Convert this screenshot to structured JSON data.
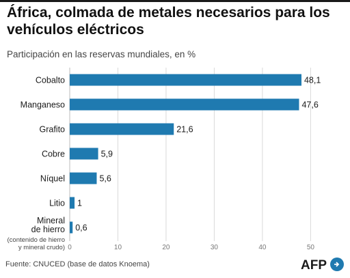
{
  "title": "África, colmada de metales necesarios para los vehículos eléctricos",
  "subtitle": "Participación en las reservas mundiales, en %",
  "source": "Fuente: CNUCED (base de datos Knoema)",
  "logo_text": "AFP",
  "colors": {
    "bar": "#1f7ab0",
    "grid": "#d9d9d9",
    "logo": "#1f7ab0"
  },
  "chart_data": {
    "type": "bar",
    "orientation": "horizontal",
    "categories": [
      {
        "label": "Cobalto",
        "value": 48.1,
        "value_label": "48,1"
      },
      {
        "label": "Manganeso",
        "value": 47.6,
        "value_label": "47,6"
      },
      {
        "label": "Grafito",
        "value": 21.6,
        "value_label": "21,6"
      },
      {
        "label": "Cobre",
        "value": 5.9,
        "value_label": "5,9"
      },
      {
        "label": "Níquel",
        "value": 5.6,
        "value_label": "5,6"
      },
      {
        "label": "Litio",
        "value": 1,
        "value_label": "1"
      },
      {
        "label": "Mineral\nde hierro",
        "note": "(contenido de hierro\ny mineral crudo)",
        "value": 0.6,
        "value_label": "0,6"
      }
    ],
    "xticks": [
      0,
      10,
      20,
      30,
      40,
      50
    ],
    "xlim": [
      0,
      52.5
    ],
    "grid": true
  }
}
